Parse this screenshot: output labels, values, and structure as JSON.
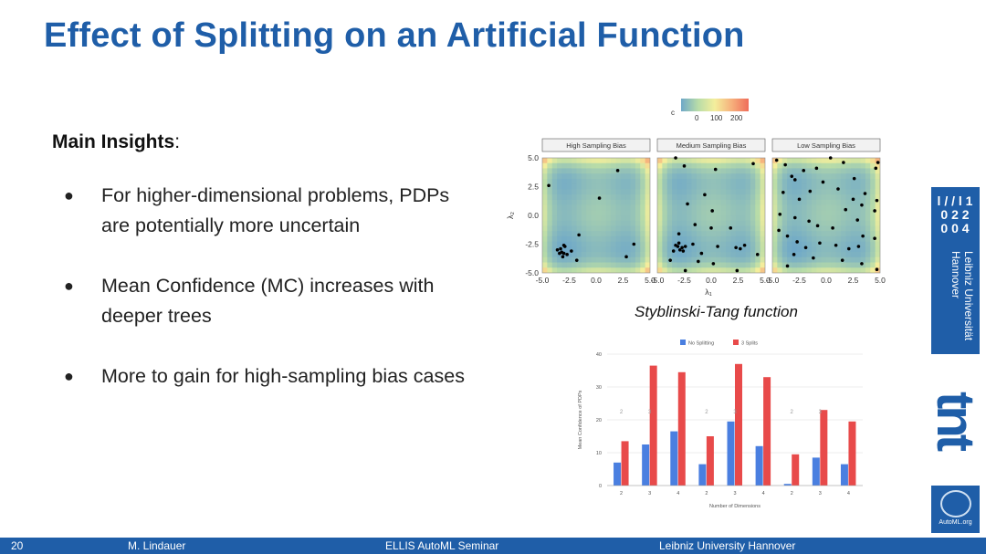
{
  "slide": {
    "title": "Effect of Splitting on an Artificial Function",
    "insights_heading": "Main Insights",
    "insights_colon": ":",
    "bullets": [
      "For higher-dimensional problems, PDPs are potentially more uncertain",
      "Mean Confidence (MC) increases with deeper trees",
      "More to gain for high-sampling bias cases"
    ],
    "caption": "Styblinski-Tang function"
  },
  "logos": {
    "university_name": "Leibniz Universität Hannover",
    "university_glyph": "l / / l 1 0 2 2 0 0 4",
    "tnt": "tnt",
    "automl": "AutoML.org"
  },
  "footer": {
    "page": "20",
    "author": "M. Lindauer",
    "event": "ELLIS AutoML Seminar",
    "institution": "Leibniz University Hannover"
  },
  "chart_data": [
    {
      "type": "heatmap",
      "panels": [
        "High Sampling Bias",
        "Medium Sampling Bias",
        "Low Sampling Bias"
      ],
      "xlabel": "λ₁",
      "ylabel": "λ₂",
      "xlim": [
        -5,
        5
      ],
      "ylim": [
        -5,
        5
      ],
      "xticks": [
        "-5.0",
        "-2.5",
        "0.0",
        "2.5",
        "5.0"
      ],
      "yticks": [
        "5.0",
        "2.5",
        "0.0",
        "-2.5",
        "-5.0"
      ],
      "colorbar": {
        "label": "c",
        "ticks": [
          "0",
          "100",
          "200"
        ],
        "range": [
          0,
          230
        ]
      },
      "points": [
        [
          [
            -4.4,
            2.6
          ],
          [
            -3.2,
            -3.2
          ],
          [
            -2.9,
            -2.7
          ],
          [
            -3.3,
            -2.9
          ],
          [
            -2.7,
            -3.4
          ],
          [
            -3.0,
            -3.3
          ],
          [
            -3.6,
            -3.0
          ],
          [
            -2.3,
            -3.1
          ],
          [
            -3.1,
            -3.6
          ],
          [
            -1.8,
            -3.9
          ],
          [
            -1.6,
            -1.7
          ],
          [
            0.3,
            1.5
          ],
          [
            2.0,
            3.9
          ],
          [
            3.5,
            -2.5
          ],
          [
            2.8,
            -3.6
          ],
          [
            -3.0,
            -2.6
          ],
          [
            -3.4,
            -3.3
          ]
        ],
        [
          [
            -3.3,
            5.0
          ],
          [
            -2.5,
            4.3
          ],
          [
            0.4,
            4.0
          ],
          [
            3.9,
            4.5
          ],
          [
            -2.2,
            1.0
          ],
          [
            -0.6,
            1.8
          ],
          [
            -3.0,
            -1.6
          ],
          [
            -1.5,
            -0.8
          ],
          [
            0.0,
            -1.1
          ],
          [
            -3.1,
            -2.7
          ],
          [
            -2.7,
            -2.8
          ],
          [
            -2.9,
            -3.0
          ],
          [
            -3.3,
            -2.6
          ],
          [
            -2.6,
            -3.1
          ],
          [
            -3.0,
            -2.4
          ],
          [
            -2.4,
            -2.7
          ],
          [
            -3.5,
            -3.1
          ],
          [
            -1.7,
            -2.5
          ],
          [
            -3.8,
            -3.9
          ],
          [
            -2.4,
            -4.8
          ],
          [
            0.6,
            -2.7
          ],
          [
            -0.9,
            -3.3
          ],
          [
            2.3,
            -2.8
          ],
          [
            2.7,
            -2.9
          ],
          [
            2.4,
            -4.8
          ],
          [
            3.1,
            -2.6
          ],
          [
            4.3,
            -3.4
          ],
          [
            1.8,
            -1.1
          ],
          [
            0.1,
            0.4
          ],
          [
            -1.2,
            -4.0
          ],
          [
            0.2,
            -4.2
          ]
        ],
        [
          [
            -4.6,
            4.8
          ],
          [
            -3.2,
            3.4
          ],
          [
            -2.1,
            3.9
          ],
          [
            0.4,
            5.0
          ],
          [
            1.6,
            4.6
          ],
          [
            4.6,
            4.1
          ],
          [
            4.8,
            4.6
          ],
          [
            -4.0,
            2.0
          ],
          [
            -2.5,
            1.4
          ],
          [
            -1.5,
            2.1
          ],
          [
            -2.9,
            3.1
          ],
          [
            -0.3,
            2.9
          ],
          [
            1.1,
            2.3
          ],
          [
            2.5,
            1.4
          ],
          [
            3.3,
            0.9
          ],
          [
            4.5,
            0.4
          ],
          [
            4.7,
            1.3
          ],
          [
            -4.3,
            0.1
          ],
          [
            -2.9,
            -0.2
          ],
          [
            -1.6,
            -0.5
          ],
          [
            -0.8,
            -0.9
          ],
          [
            0.6,
            -1.1
          ],
          [
            1.8,
            0.5
          ],
          [
            2.9,
            -0.4
          ],
          [
            3.6,
            1.9
          ],
          [
            -4.4,
            -1.3
          ],
          [
            -3.6,
            -1.8
          ],
          [
            -2.7,
            -2.3
          ],
          [
            -1.9,
            -2.8
          ],
          [
            -0.6,
            -2.4
          ],
          [
            0.9,
            -2.6
          ],
          [
            2.1,
            -2.9
          ],
          [
            3.4,
            -1.8
          ],
          [
            4.5,
            -2.0
          ],
          [
            -3.0,
            -3.4
          ],
          [
            -1.2,
            -3.7
          ],
          [
            1.5,
            -3.9
          ],
          [
            3.3,
            -4.2
          ],
          [
            -3.6,
            -4.4
          ],
          [
            4.7,
            -4.7
          ],
          [
            -0.9,
            4.1
          ],
          [
            -3.8,
            4.4
          ],
          [
            2.6,
            3.2
          ],
          [
            3.0,
            -2.7
          ]
        ]
      ]
    },
    {
      "type": "bar",
      "series": [
        {
          "name": "No Splitting",
          "color": "#4a7fe0",
          "values": [
            7,
            12.5,
            16.5,
            6.5,
            19.5,
            12,
            0.5,
            8.5,
            6.5
          ]
        },
        {
          "name": "3 Splits",
          "color": "#e84a4a",
          "values": [
            13.5,
            36.5,
            34.5,
            15,
            37,
            33,
            9.5,
            23,
            19.5
          ]
        }
      ],
      "categories": [
        "2",
        "3",
        "4",
        "2",
        "3",
        "4",
        "2",
        "3",
        "4"
      ],
      "xlabel": "Number of Dimensions",
      "ylabel": "Mean Confidence of PDPs",
      "ylim": [
        0,
        40
      ],
      "yticks": [
        "0",
        "10",
        "20",
        "30",
        "40"
      ],
      "annotations": [
        "2",
        "3",
        "",
        "2",
        "3",
        "",
        "2",
        "3",
        ""
      ]
    }
  ]
}
